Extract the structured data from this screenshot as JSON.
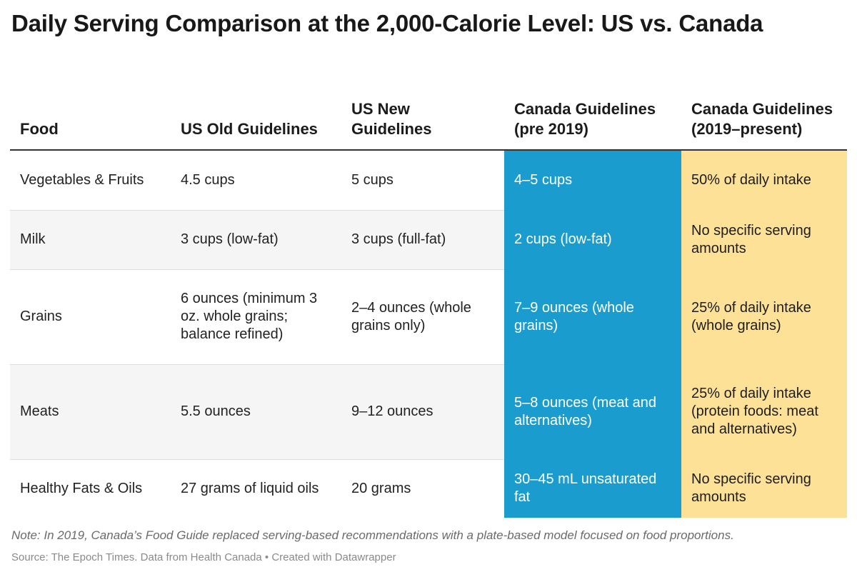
{
  "title": "Daily Serving Comparison at the 2,000-Calorie Level: US vs. Canada",
  "chart_data": {
    "type": "table",
    "columns": [
      "Food",
      "US Old Guidelines",
      "US New Guidelines",
      "Canada Guidelines (pre 2019)",
      "Canada Guidelines (2019–present)"
    ],
    "rows": [
      [
        "Vegetables & Fruits",
        "4.5 cups",
        "5 cups",
        "4–5 cups",
        "50% of daily intake"
      ],
      [
        "Milk",
        "3 cups (low-fat)",
        "3 cups (full-fat)",
        "2 cups (low-fat)",
        "No specific serving amounts"
      ],
      [
        "Grains",
        "6 ounces (minimum 3 oz. whole grains; balance refined)",
        "2–4 ounces (whole grains only)",
        "7–9 ounces (whole grains)",
        "25% of daily intake (whole grains)"
      ],
      [
        "Meats",
        "5.5 ounces",
        "9–12 ounces",
        "5–8 ounces (meat and alternatives)",
        "25% of daily intake (protein foods: meat and alternatives)"
      ],
      [
        "Healthy Fats & Oils",
        "27 grams of liquid oils",
        "20 grams",
        "30–45 mL unsaturated fat",
        "No specific serving amounts"
      ]
    ],
    "highlight_colors": {
      "canada_pre_2019": "#1a9dce",
      "canada_2019_present": "#fde197"
    }
  },
  "note": "Note: In 2019, Canada’s Food Guide replaced serving-based recommendations with a plate-based model focused on food proportions.",
  "source": "Source: The Epoch Times. Data from Health Canada • Created with Datawrapper"
}
